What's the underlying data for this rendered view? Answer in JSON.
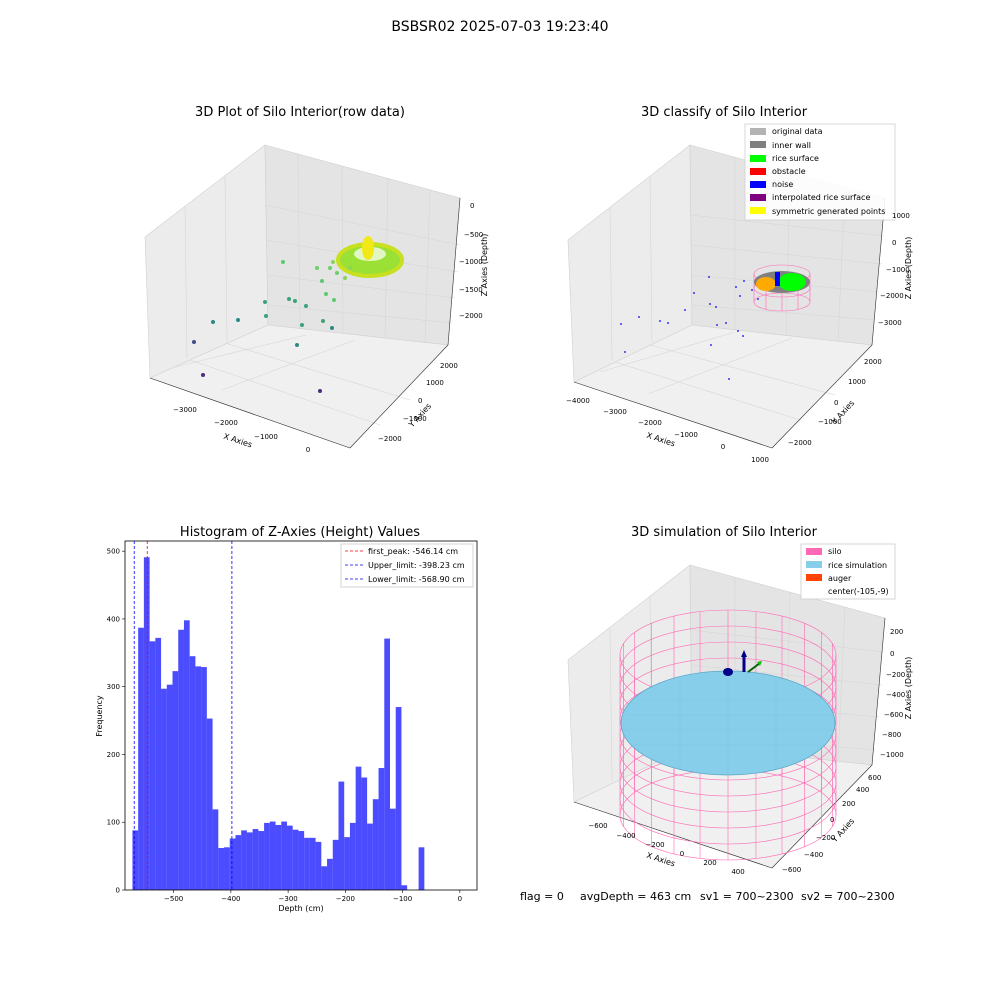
{
  "figure": {
    "title": "BSBSR02 2025-07-03 19:23:40",
    "footer": {
      "flag": "flag = 0",
      "avg_depth": "avgDepth = 463 cm",
      "sv1": "sv1 = 700~2300",
      "sv2": "sv2 = 700~2300"
    }
  },
  "panels": {
    "raw": {
      "title": "3D Plot of Silo Interior(row data)",
      "xlabel": "X Axies",
      "ylabel": "Y Axies",
      "zlabel": "Z Axies (Depth)",
      "xticks": [
        "−3000",
        "−2000",
        "−1000",
        "0"
      ],
      "yticks": [
        "−2000",
        "−1000",
        "0",
        "1000",
        "2000"
      ],
      "zticks": [
        "0",
        "−500",
        "−1000",
        "−1500",
        "−2000"
      ]
    },
    "classify": {
      "title": "3D classify of Silo Interior",
      "xlabel": "X Axies",
      "ylabel": "Y Axies",
      "zlabel": "Z Axies (Depth)",
      "xticks": [
        "−4000",
        "−3000",
        "−2000",
        "−1000",
        "0",
        "1000"
      ],
      "yticks": [
        "−2000",
        "−1000",
        "0",
        "1000",
        "2000"
      ],
      "zticks": [
        "1000",
        "0",
        "−1000",
        "−2000",
        "−3000"
      ],
      "legend": [
        {
          "label": "original data",
          "color": "#b3b3b3"
        },
        {
          "label": "inner wall",
          "color": "#808080"
        },
        {
          "label": "rice surface",
          "color": "#00ff00"
        },
        {
          "label": "obstacle",
          "color": "#ff0000"
        },
        {
          "label": "noise",
          "color": "#0000ff"
        },
        {
          "label": "interpolated rice surface",
          "color": "#800080"
        },
        {
          "label": "symmetric generated points",
          "color": "#ffff00"
        }
      ]
    },
    "simulation": {
      "title": "3D simulation of Silo Interior",
      "xlabel": "X Axies",
      "ylabel": "Y Axies",
      "zlabel": "Z Axies (Depth)",
      "xticks": [
        "−600",
        "−400",
        "−200",
        "0",
        "200",
        "400"
      ],
      "yticks": [
        "−600",
        "−400",
        "−200",
        "0",
        "200",
        "400",
        "600"
      ],
      "zticks": [
        "200",
        "0",
        "−200",
        "−400",
        "−600",
        "−800",
        "−1000"
      ],
      "legend": [
        {
          "label": "silo",
          "color": "#ff69b4"
        },
        {
          "label": "rice simulation",
          "color": "#87ceeb"
        },
        {
          "label": "auger",
          "color": "#ff4500"
        },
        {
          "label": "center(-105,-9)",
          "color": "none"
        }
      ]
    }
  },
  "chart_data": {
    "type": "bar",
    "title": "Histogram of Z-Axies (Height) Values",
    "xlabel": "Depth (cm)",
    "ylabel": "Frequency",
    "xlim": [
      -585,
      30
    ],
    "ylim": [
      0,
      515
    ],
    "xticks": [
      -500,
      -400,
      -300,
      -200,
      -100,
      0
    ],
    "xtick_labels": [
      "−500",
      "−400",
      "−300",
      "−200",
      "−100",
      "0"
    ],
    "yticks": [
      0,
      100,
      200,
      300,
      400,
      500
    ],
    "bar_color": "#0000ff",
    "bin_start": -572,
    "bin_width": 10,
    "values": [
      88,
      387,
      491,
      367,
      372,
      297,
      303,
      323,
      384,
      398,
      345,
      330,
      329,
      253,
      119,
      62,
      63,
      76,
      81,
      88,
      85,
      90,
      87,
      99,
      101,
      96,
      101,
      95,
      89,
      87,
      77,
      77,
      71,
      35,
      46,
      74,
      160,
      78,
      99,
      182,
      166,
      98,
      134,
      180,
      371,
      120,
      270,
      7,
      0,
      0,
      63
    ],
    "lines": [
      {
        "label": "first_peak: -546.14 cm",
        "x": -546.14,
        "color": "#ff0000"
      },
      {
        "label": "Upper_limit: -398.23 cm",
        "x": -398.23,
        "color": "#0000ff"
      },
      {
        "label": "Lower_limit: -568.90 cm",
        "x": -568.9,
        "color": "#0000ff"
      }
    ]
  }
}
